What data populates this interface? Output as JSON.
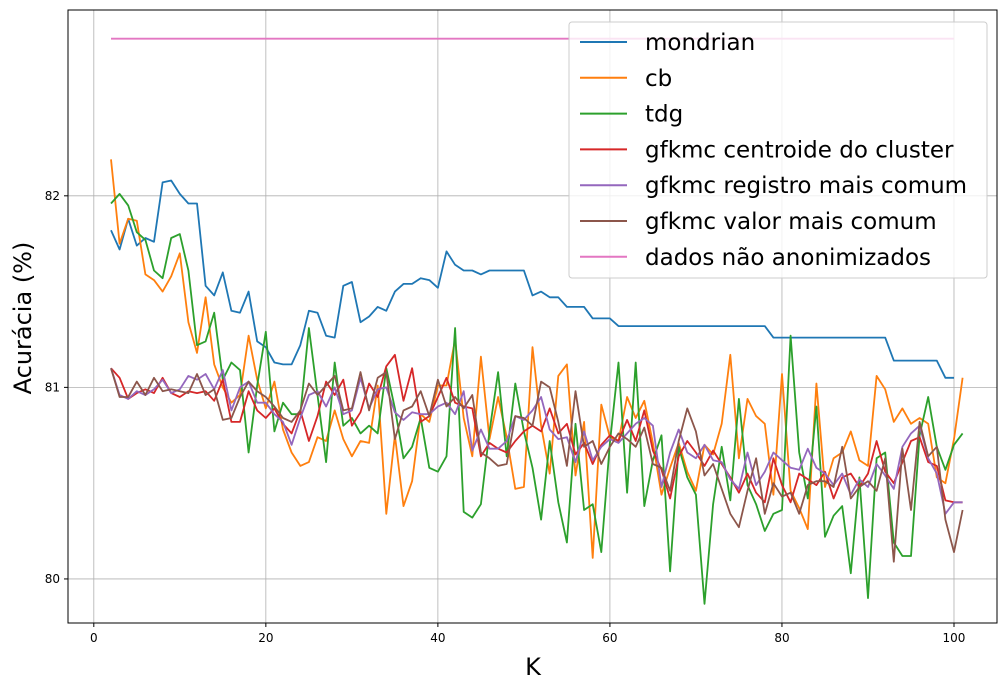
{
  "chart_data": {
    "type": "line",
    "title": "",
    "xlabel": "K",
    "ylabel": "Acurácia (%)",
    "xlim": [
      -3,
      105
    ],
    "ylim": [
      79.77,
      82.97
    ],
    "xticks": [
      0,
      20,
      40,
      60,
      80,
      100
    ],
    "yticks": [
      80,
      81,
      82
    ],
    "grid": true,
    "legend_position": "top-right",
    "colors": {
      "mondrian": "#1f77b4",
      "cb": "#ff7f0e",
      "tdg": "#2ca02c",
      "centroide": "#d62728",
      "registro": "#9467bd",
      "valor": "#8c564b",
      "nao_anon": "#e377c2"
    },
    "series": [
      {
        "name": "mondrian",
        "color": "#1f77b4",
        "x_start": 2,
        "values": [
          81.82,
          81.72,
          81.88,
          81.74,
          81.78,
          81.76,
          82.07,
          82.08,
          82.01,
          81.96,
          81.96,
          81.53,
          81.48,
          81.6,
          81.4,
          81.39,
          81.5,
          81.24,
          81.21,
          81.13,
          81.12,
          81.12,
          81.22,
          81.4,
          81.39,
          81.27,
          81.26,
          81.53,
          81.55,
          81.34,
          81.37,
          81.42,
          81.4,
          81.5,
          81.54,
          81.54,
          81.57,
          81.56,
          81.52,
          81.71,
          81.64,
          81.61,
          81.61,
          81.59,
          81.61,
          81.61,
          81.61,
          81.61,
          81.61,
          81.48,
          81.5,
          81.47,
          81.47,
          81.42,
          81.42,
          81.42,
          81.36,
          81.36,
          81.36,
          81.32,
          81.32,
          81.32,
          81.32,
          81.32,
          81.32,
          81.32,
          81.32,
          81.32,
          81.32,
          81.32,
          81.32,
          81.32,
          81.32,
          81.32,
          81.32,
          81.32,
          81.32,
          81.26,
          81.26,
          81.26,
          81.26,
          81.26,
          81.26,
          81.26,
          81.26,
          81.26,
          81.26,
          81.26,
          81.26,
          81.26,
          81.26,
          81.14,
          81.14,
          81.14,
          81.14,
          81.14,
          81.14,
          81.05,
          81.05
        ]
      },
      {
        "name": "cb",
        "color": "#ff7f0e",
        "x_start": 2,
        "values": [
          82.19,
          81.75,
          81.88,
          81.87,
          81.59,
          81.56,
          81.5,
          81.58,
          81.7,
          81.34,
          81.18,
          81.47,
          81.12,
          81.0,
          80.92,
          80.96,
          81.27,
          81.04,
          80.89,
          81.03,
          80.78,
          80.66,
          80.59,
          80.61,
          80.74,
          80.72,
          80.88,
          80.73,
          80.64,
          80.72,
          80.71,
          81.01,
          80.34,
          80.75,
          80.38,
          80.51,
          80.86,
          80.82,
          81.01,
          81.01,
          81.25,
          80.84,
          80.64,
          81.16,
          80.73,
          80.95,
          80.74,
          80.47,
          80.48,
          81.21,
          80.8,
          80.55,
          81.06,
          81.12,
          80.54,
          80.82,
          80.11,
          80.91,
          80.74,
          80.72,
          80.95,
          80.84,
          80.93,
          80.71,
          80.44,
          80.58,
          80.71,
          80.56,
          80.46,
          80.7,
          80.65,
          80.81,
          81.17,
          80.63,
          80.94,
          80.85,
          80.81,
          80.44,
          81.07,
          80.46,
          80.37,
          80.26,
          81.02,
          80.48,
          80.63,
          80.66,
          80.77,
          80.62,
          80.59,
          81.06,
          80.99,
          80.82,
          80.89,
          80.81,
          80.84,
          80.81,
          80.53,
          80.5,
          80.73,
          81.05
        ]
      },
      {
        "name": "tdg",
        "color": "#2ca02c",
        "x_start": 2,
        "values": [
          81.96,
          82.01,
          81.95,
          81.81,
          81.77,
          81.61,
          81.57,
          81.78,
          81.8,
          81.61,
          81.22,
          81.24,
          81.39,
          81.04,
          81.13,
          81.09,
          80.66,
          81.01,
          81.29,
          80.77,
          80.92,
          80.86,
          80.86,
          81.31,
          80.96,
          80.61,
          81.13,
          80.8,
          80.84,
          80.76,
          80.8,
          80.76,
          81.1,
          80.89,
          80.63,
          80.69,
          80.84,
          80.58,
          80.56,
          80.64,
          81.31,
          80.35,
          80.32,
          80.39,
          80.77,
          81.08,
          80.64,
          81.02,
          80.77,
          80.58,
          80.31,
          80.72,
          80.4,
          80.19,
          80.81,
          80.36,
          80.39,
          80.14,
          80.71,
          81.13,
          80.45,
          81.13,
          80.38,
          80.62,
          80.75,
          80.04,
          80.69,
          80.53,
          80.44,
          79.87,
          80.39,
          80.69,
          80.41,
          80.94,
          80.49,
          80.39,
          80.25,
          80.34,
          80.36,
          81.27,
          80.66,
          80.42,
          80.9,
          80.22,
          80.33,
          80.38,
          80.03,
          80.53,
          79.9,
          80.63,
          80.66,
          80.19,
          80.12,
          80.12,
          80.75,
          80.95,
          80.69,
          80.57,
          80.7,
          80.76
        ]
      },
      {
        "name": "gfkmc centroide do cluster",
        "color": "#d62728",
        "x_start": 2,
        "values": [
          81.1,
          81.05,
          80.94,
          80.97,
          80.99,
          80.97,
          81.05,
          80.97,
          80.95,
          80.98,
          80.97,
          80.98,
          80.93,
          81.04,
          80.82,
          80.82,
          80.98,
          80.88,
          80.84,
          80.89,
          80.81,
          80.76,
          80.88,
          80.72,
          80.85,
          81.03,
          80.96,
          81.04,
          80.8,
          80.87,
          81.02,
          80.95,
          81.11,
          81.17,
          80.93,
          81.1,
          80.82,
          80.85,
          80.95,
          81.05,
          80.92,
          80.9,
          80.89,
          80.64,
          80.71,
          80.68,
          80.66,
          80.72,
          80.77,
          80.8,
          80.77,
          80.89,
          80.76,
          80.81,
          80.65,
          80.71,
          80.6,
          80.7,
          80.75,
          80.72,
          80.83,
          80.72,
          80.88,
          80.67,
          80.57,
          80.42,
          80.64,
          80.72,
          80.66,
          80.59,
          80.67,
          80.6,
          80.53,
          80.45,
          80.55,
          80.45,
          80.4,
          80.63,
          80.49,
          80.4,
          80.55,
          80.52,
          80.49,
          80.56,
          80.42,
          80.53,
          80.55,
          80.48,
          80.55,
          80.72,
          80.56,
          80.5,
          80.61,
          80.72,
          80.74,
          80.61,
          80.59,
          80.41,
          80.4,
          80.4
        ]
      },
      {
        "name": "gfkmc registro mais comum",
        "color": "#9467bd",
        "x_start": 2,
        "values": [
          81.1,
          80.96,
          80.94,
          80.98,
          80.96,
          80.99,
          81.04,
          80.97,
          80.99,
          81.06,
          81.04,
          81.07,
          80.99,
          81.09,
          80.88,
          81.0,
          81.03,
          80.92,
          80.92,
          80.86,
          80.82,
          80.7,
          80.84,
          80.96,
          80.98,
          80.9,
          81.0,
          80.86,
          80.88,
          81.05,
          80.89,
          80.99,
          81.0,
          80.87,
          80.83,
          80.87,
          80.86,
          80.86,
          80.9,
          80.92,
          80.86,
          80.98,
          80.67,
          80.78,
          80.68,
          80.68,
          80.72,
          80.85,
          80.83,
          80.88,
          80.95,
          80.78,
          80.73,
          80.74,
          80.61,
          80.77,
          80.62,
          80.69,
          80.73,
          80.71,
          80.76,
          80.81,
          80.84,
          80.8,
          80.48,
          80.66,
          80.78,
          80.66,
          80.63,
          80.7,
          80.62,
          80.61,
          80.52,
          80.47,
          80.66,
          80.49,
          80.56,
          80.66,
          80.62,
          80.58,
          80.57,
          80.68,
          80.58,
          80.55,
          80.49,
          80.55,
          80.44,
          80.52,
          80.48,
          80.6,
          80.54,
          80.47,
          80.69,
          80.76,
          80.8,
          80.63,
          80.55,
          80.34,
          80.4,
          80.4
        ]
      },
      {
        "name": "gfkmc valor mais comum",
        "color": "#8c564b",
        "x_start": 2,
        "values": [
          81.1,
          80.95,
          80.95,
          81.03,
          80.96,
          81.05,
          80.98,
          80.99,
          80.98,
          80.97,
          81.07,
          80.96,
          80.99,
          80.83,
          80.84,
          80.95,
          81.03,
          80.98,
          80.95,
          80.9,
          80.84,
          80.82,
          80.88,
          81.02,
          80.96,
          81.01,
          81.06,
          80.88,
          80.89,
          81.08,
          80.88,
          81.05,
          81.08,
          80.73,
          80.88,
          80.9,
          80.98,
          80.85,
          81.04,
          80.9,
          80.95,
          80.89,
          80.96,
          80.66,
          80.63,
          80.59,
          80.6,
          80.85,
          80.84,
          80.8,
          81.03,
          81.0,
          80.82,
          80.59,
          80.98,
          80.69,
          80.72,
          80.6,
          80.69,
          80.76,
          80.73,
          80.69,
          80.79,
          80.6,
          80.58,
          80.46,
          80.72,
          80.89,
          80.77,
          80.54,
          80.6,
          80.47,
          80.34,
          80.27,
          80.46,
          80.63,
          80.34,
          80.5,
          80.43,
          80.45,
          80.34,
          80.49,
          80.51,
          80.51,
          80.48,
          80.69,
          80.42,
          80.48,
          80.51,
          80.46,
          80.63,
          80.09,
          80.68,
          80.36,
          80.82,
          80.64,
          80.69,
          80.31,
          80.14,
          80.36
        ]
      },
      {
        "name": "dados não anonimizados",
        "color": "#e377c2",
        "x_start": 2,
        "values": [
          82.82,
          82.82,
          82.82,
          82.82,
          82.82,
          82.82,
          82.82,
          82.82,
          82.82,
          82.82,
          82.82,
          82.82,
          82.82,
          82.82,
          82.82,
          82.82,
          82.82,
          82.82,
          82.82,
          82.82,
          82.82,
          82.82,
          82.82,
          82.82,
          82.82,
          82.82,
          82.82,
          82.82,
          82.82,
          82.82,
          82.82,
          82.82,
          82.82,
          82.82,
          82.82,
          82.82,
          82.82,
          82.82,
          82.82,
          82.82,
          82.82,
          82.82,
          82.82,
          82.82,
          82.82,
          82.82,
          82.82,
          82.82,
          82.82,
          82.82,
          82.82,
          82.82,
          82.82,
          82.82,
          82.82,
          82.82,
          82.82,
          82.82,
          82.82,
          82.82,
          82.82,
          82.82,
          82.82,
          82.82,
          82.82,
          82.82,
          82.82,
          82.82,
          82.82,
          82.82,
          82.82,
          82.82,
          82.82,
          82.82,
          82.82,
          82.82,
          82.82,
          82.82,
          82.82,
          82.82,
          82.82,
          82.82,
          82.82,
          82.82,
          82.82,
          82.82,
          82.82,
          82.82,
          82.82,
          82.82,
          82.82,
          82.82,
          82.82,
          82.82,
          82.82,
          82.82,
          82.82,
          82.82,
          82.82
        ]
      }
    ]
  }
}
